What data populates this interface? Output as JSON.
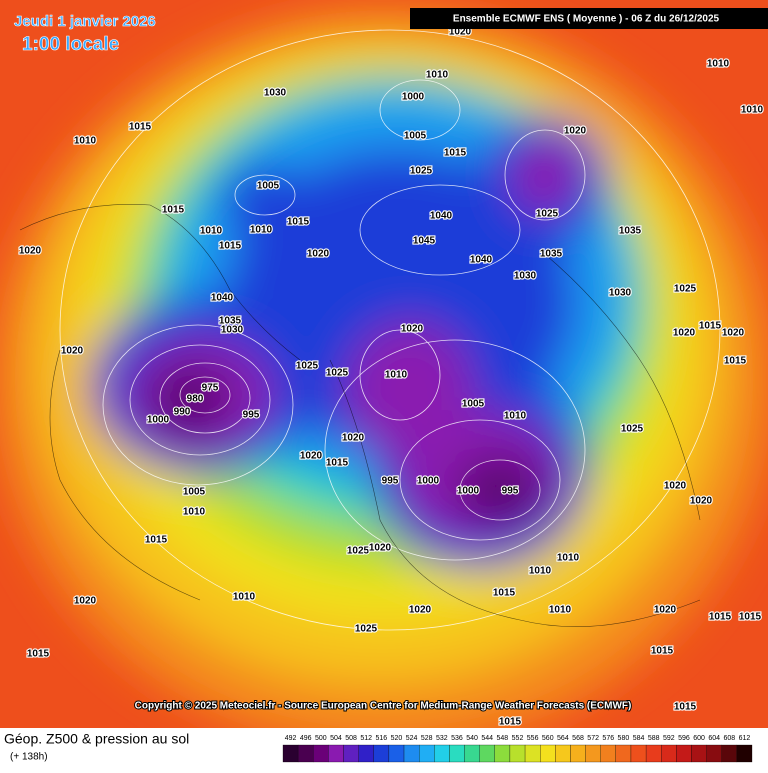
{
  "header": {
    "date": "Jeudi 1 janvier 2026",
    "time": "1:00 locale",
    "model": "Ensemble ECMWF ENS  ( Moyenne )  - 06 Z du 26/12/2025"
  },
  "copyright": "Copyright © 2025 Meteociel.fr - Source European Centre for Medium-Range Weather Forecasts (ECMWF)",
  "footer": {
    "title": "Géop. Z500 & pression au sol",
    "subtitle": "(+ 138h)"
  },
  "legend": {
    "levels": [
      492,
      496,
      500,
      504,
      508,
      512,
      516,
      520,
      524,
      528,
      532,
      536,
      540,
      544,
      548,
      552,
      556,
      560,
      564,
      568,
      572,
      576,
      580,
      584,
      588,
      592,
      596,
      600,
      604,
      608,
      612
    ]
  },
  "isobar_labels": [
    1030,
    1015,
    1010,
    1000,
    1010,
    1005,
    1015,
    1025,
    1020,
    1025,
    1005,
    1015,
    1010,
    1015,
    1010,
    1015,
    1020,
    1045,
    1040,
    1040,
    1035,
    1030,
    1040,
    1035,
    1030,
    1020,
    1010,
    1025,
    1025,
    975,
    980,
    990,
    995,
    1000,
    1005,
    1010,
    1020,
    995,
    1000,
    1000,
    995,
    1020,
    1015,
    1005,
    1010,
    1015,
    1025,
    1020,
    1010,
    1010,
    1015,
    1020,
    1010,
    1025,
    1010,
    1020,
    1015,
    1020,
    1015,
    1010,
    1010,
    1020,
    1020,
    1035,
    1030,
    1025,
    1020,
    1015,
    1020,
    1015,
    1025,
    1020,
    1020,
    1015,
    1015,
    1020,
    1015,
    1015
  ]
}
